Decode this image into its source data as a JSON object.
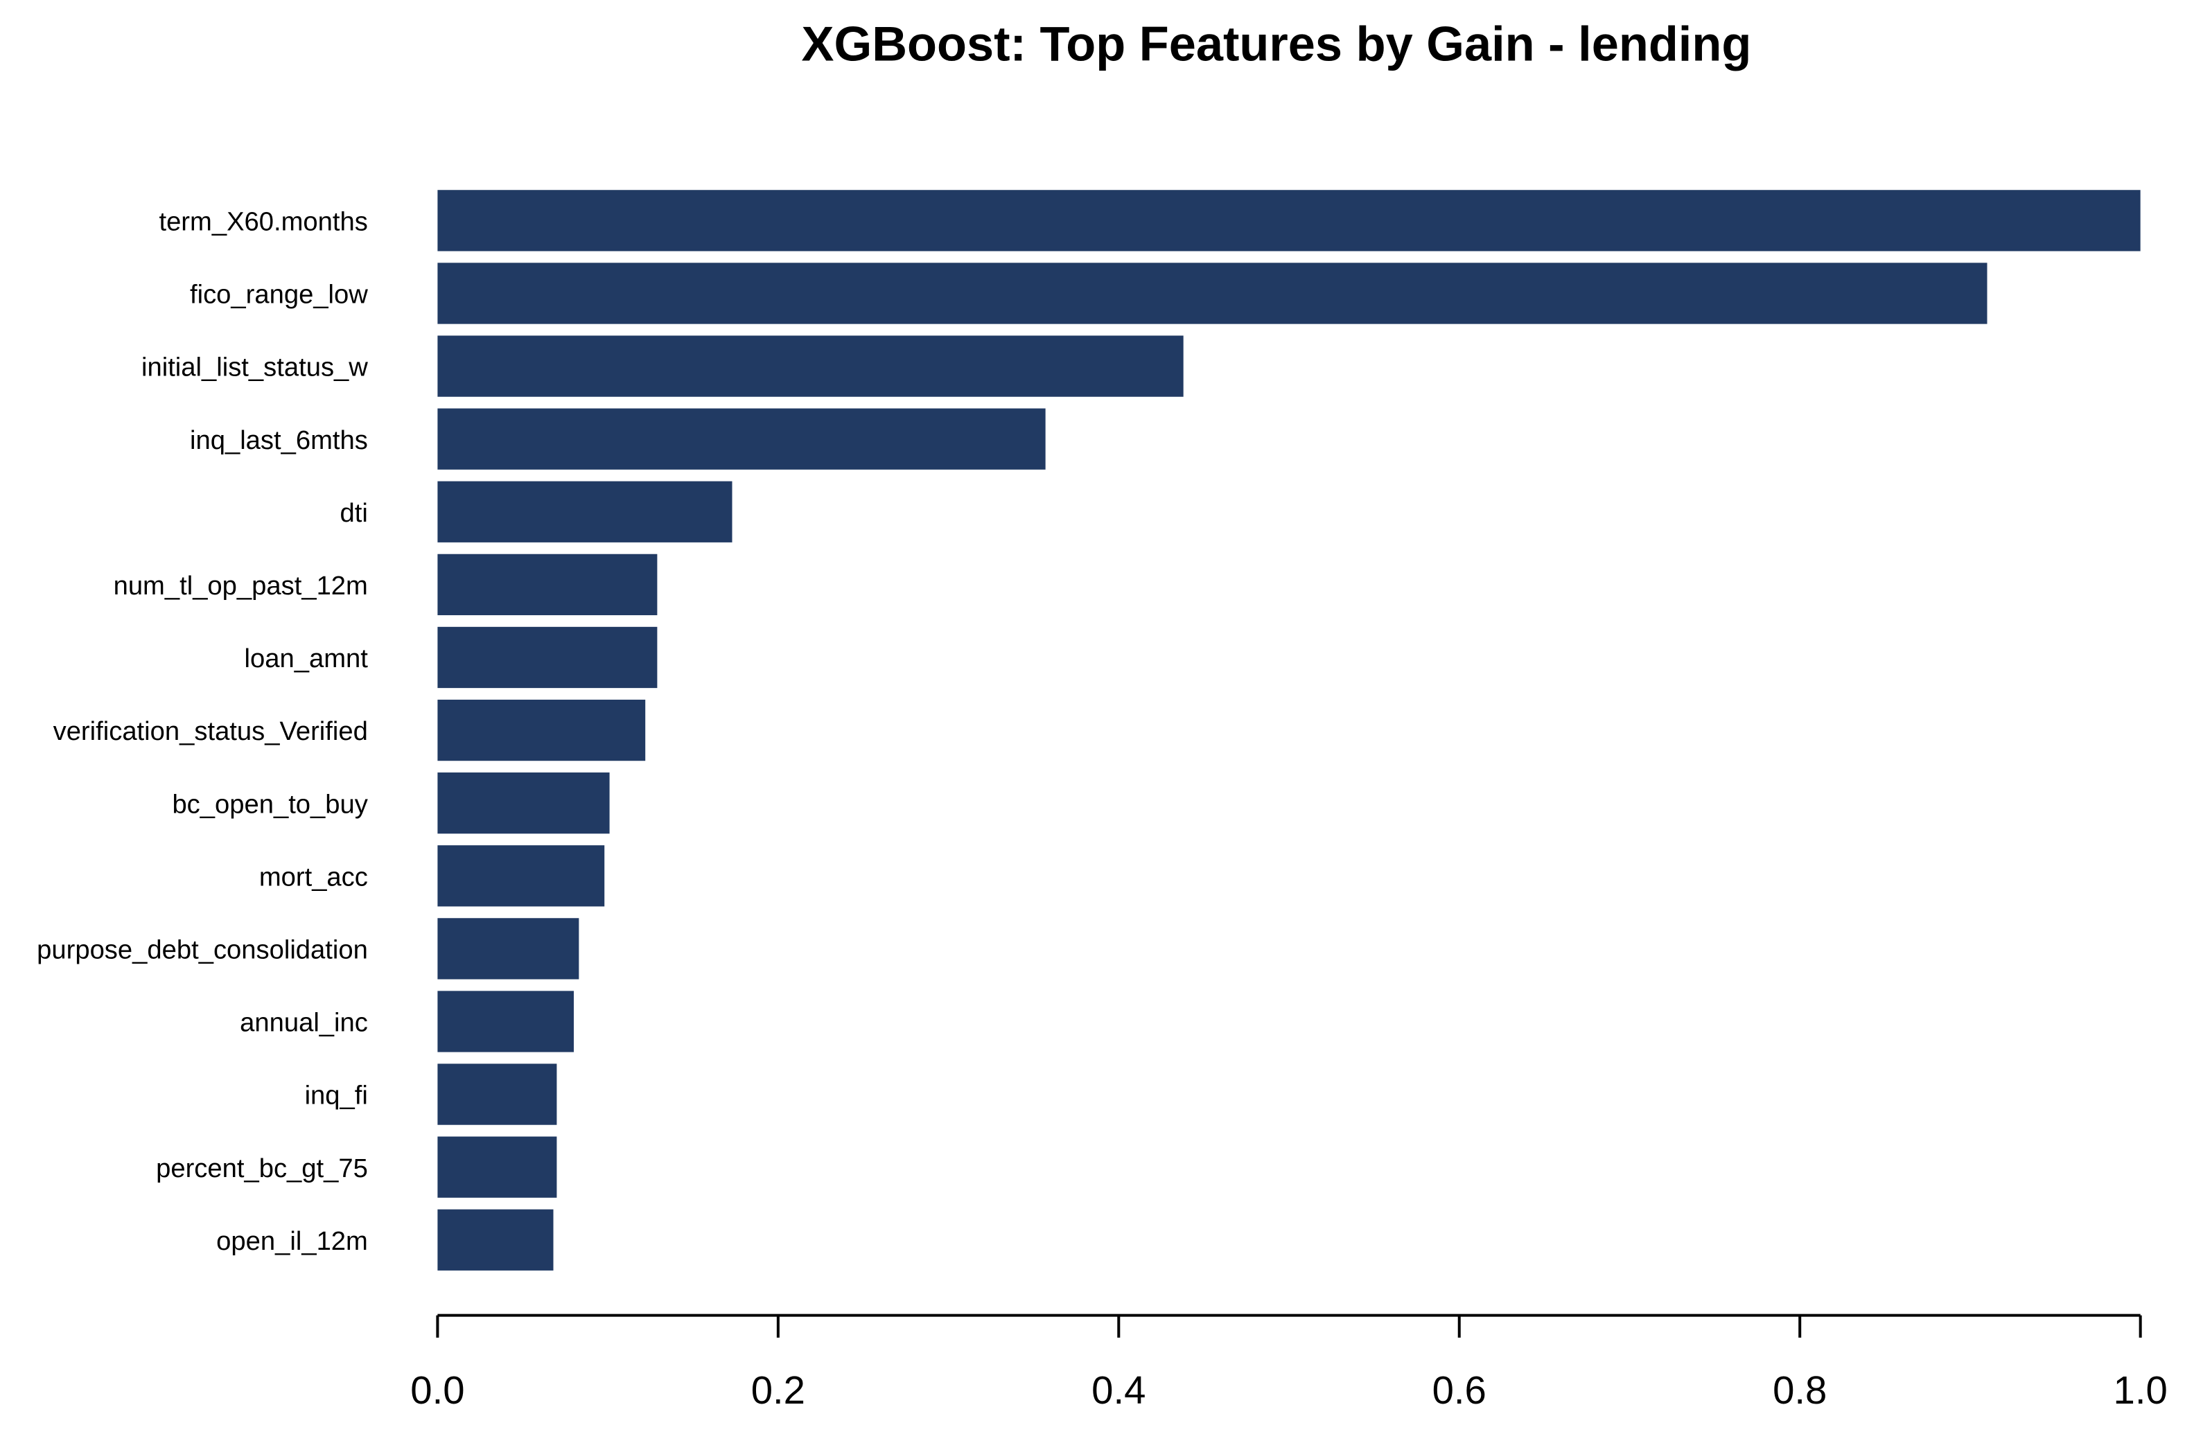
{
  "chart_data": {
    "type": "bar",
    "orientation": "horizontal",
    "title": "XGBoost: Top Features by Gain - lending",
    "categories": [
      "term_X60.months",
      "fico_range_low",
      "initial_list_status_w",
      "inq_last_6mths",
      "dti",
      "num_tl_op_past_12m",
      "loan_amnt",
      "verification_status_Verified",
      "bc_open_to_buy",
      "mort_acc",
      "purpose_debt_consolidation",
      "annual_inc",
      "inq_fi",
      "percent_bc_gt_75",
      "open_il_12m"
    ],
    "values": [
      1.0,
      0.91,
      0.438,
      0.357,
      0.173,
      0.129,
      0.129,
      0.122,
      0.101,
      0.098,
      0.083,
      0.08,
      0.07,
      0.07,
      0.068
    ],
    "color": "#213a63",
    "xlim": [
      0,
      1
    ],
    "xticks": [
      {
        "value": 0,
        "label": "0.0"
      },
      {
        "value": 0.2,
        "label": "0.2"
      },
      {
        "value": 0.4,
        "label": "0.4"
      },
      {
        "value": 0.6,
        "label": "0.6"
      },
      {
        "value": 0.8,
        "label": "0.8"
      },
      {
        "value": 1,
        "label": "1.0"
      }
    ]
  }
}
